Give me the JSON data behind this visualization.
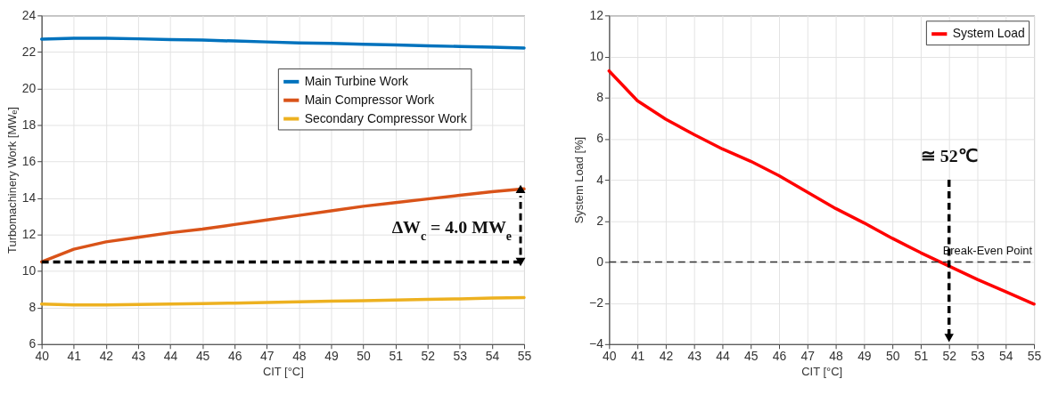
{
  "chart_data": [
    {
      "type": "line",
      "xlabel": "CIT [°C]",
      "ylabel": "Turbomachinery Work [MWₑ]",
      "x": [
        40,
        41,
        42,
        43,
        44,
        45,
        46,
        47,
        48,
        49,
        50,
        51,
        52,
        53,
        54,
        55
      ],
      "xlim": [
        40,
        55
      ],
      "xticks": [
        40,
        41,
        42,
        43,
        44,
        45,
        46,
        47,
        48,
        49,
        50,
        51,
        52,
        53,
        54,
        55
      ],
      "ylim": [
        6,
        24
      ],
      "yticks": [
        6,
        8,
        10,
        12,
        14,
        16,
        18,
        20,
        22,
        24
      ],
      "grid": true,
      "legend": "top right",
      "line_style": "solid",
      "series": [
        {
          "name": "Main Turbine Work",
          "color": "#0072bd",
          "values": [
            22.7,
            22.75,
            22.75,
            22.72,
            22.68,
            22.65,
            22.6,
            22.55,
            22.5,
            22.47,
            22.42,
            22.38,
            22.34,
            22.3,
            22.26,
            22.22
          ]
        },
        {
          "name": "Main Compressor Work",
          "color": "#d95319",
          "values": [
            10.5,
            11.2,
            11.6,
            11.85,
            12.1,
            12.3,
            12.55,
            12.8,
            13.05,
            13.3,
            13.55,
            13.75,
            13.95,
            14.15,
            14.35,
            14.5
          ]
        },
        {
          "name": "Secondary Compressor Work",
          "color": "#edb120",
          "values": [
            8.2,
            8.15,
            8.15,
            8.17,
            8.2,
            8.22,
            8.25,
            8.28,
            8.32,
            8.35,
            8.38,
            8.42,
            8.45,
            8.48,
            8.52,
            8.55
          ]
        }
      ],
      "ref_lines": [
        {
          "axis": "y",
          "value": 10.5,
          "label": null,
          "color": "#000000",
          "line_style": "dashed"
        }
      ],
      "annotations": [
        "ΔW$_{c}$ = 4.0 MW$_{e}$"
      ]
    },
    {
      "type": "line",
      "xlabel": "CIT [°C]",
      "ylabel": "System Load [%]",
      "x": [
        40,
        41,
        42,
        43,
        44,
        45,
        46,
        47,
        48,
        49,
        50,
        51,
        52,
        53,
        54,
        55
      ],
      "xlim": [
        40,
        55
      ],
      "xticks": [
        40,
        41,
        42,
        43,
        44,
        45,
        46,
        47,
        48,
        49,
        50,
        51,
        52,
        53,
        54,
        55
      ],
      "ylim": [
        -4,
        12
      ],
      "yticks": [
        -4,
        -2,
        0,
        2,
        4,
        6,
        8,
        10,
        12
      ],
      "grid": true,
      "legend": "top right",
      "line_style": "solid",
      "series": [
        {
          "name": "System Load",
          "color": "#ff0000",
          "values": [
            9.3,
            7.85,
            6.95,
            6.2,
            5.5,
            4.9,
            4.2,
            3.4,
            2.6,
            1.9,
            1.15,
            0.45,
            -0.2,
            -0.85,
            -1.45,
            -2.05
          ]
        }
      ],
      "ref_lines": [
        {
          "axis": "y",
          "value": 0,
          "label": "Break-Even Point",
          "color": "#333333",
          "line_style": "dashed"
        },
        {
          "axis": "x",
          "value": 52,
          "label": null,
          "color": "#000000",
          "line_style": "dashed"
        }
      ],
      "annotations": [
        "≅ 52℃"
      ]
    }
  ]
}
